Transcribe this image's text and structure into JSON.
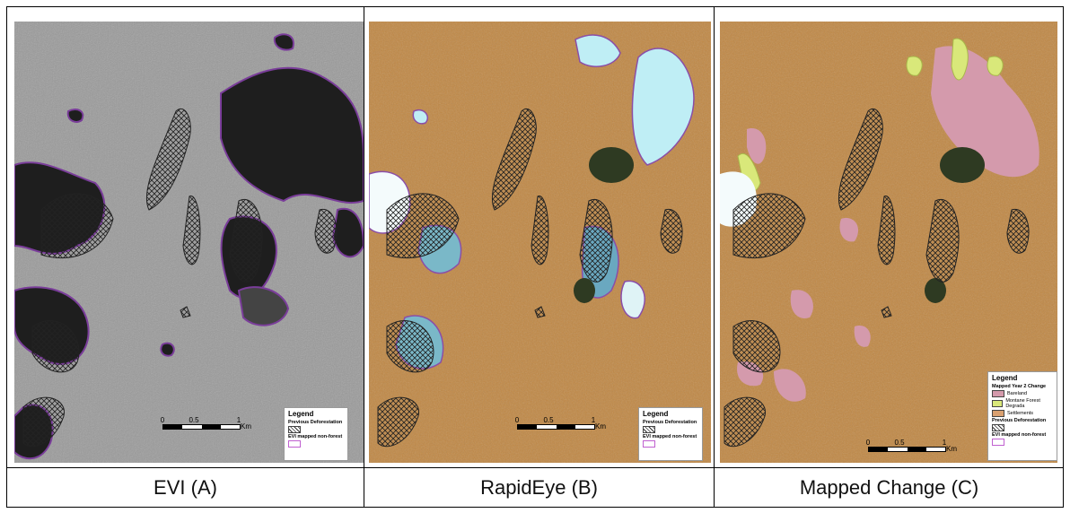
{
  "panels": [
    {
      "caption": "EVI (A)"
    },
    {
      "caption": "RapidEye (B)"
    },
    {
      "caption": "Mapped Change (C)"
    }
  ],
  "legend_simple": {
    "title": "Legend",
    "previous_deforestation": "Previous Deforestation",
    "evi_non_forest": "EVI mapped non-forest"
  },
  "legend_change": {
    "title": "Legend",
    "subtitle": "Mapped Year 2 Change",
    "items": [
      "Bareland",
      "Montane Forest Degrada",
      "Settlements"
    ],
    "item_colors": [
      "#d49aac",
      "#d9e87a",
      "#d9a070"
    ],
    "previous_deforestation": "Previous Deforestation",
    "evi_non_forest": "EVI mapped non-forest"
  },
  "scale": {
    "ticks": [
      "0",
      "0.5",
      "1"
    ],
    "unit": "Km"
  }
}
